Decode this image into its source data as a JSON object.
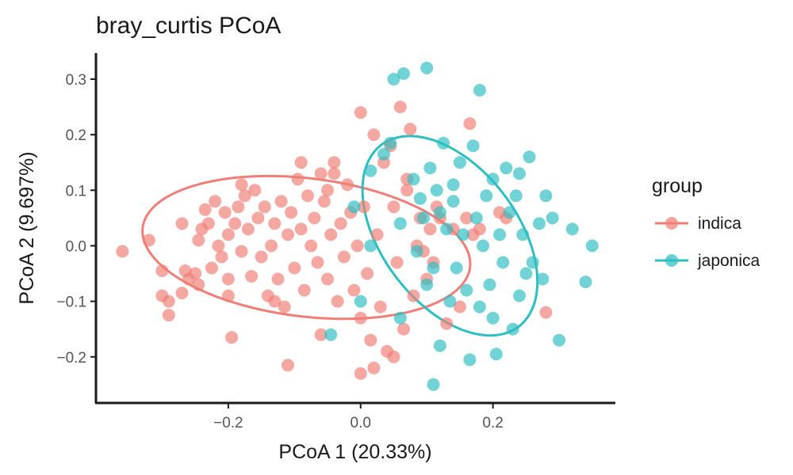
{
  "chart_data": {
    "type": "scatter",
    "title": "bray_curtis PCoA",
    "xlabel": "PCoA 1 (20.33%)",
    "ylabel": "PCoA 2 (9.697%)",
    "xlim": [
      -0.4,
      0.385
    ],
    "ylim": [
      -0.283,
      0.347
    ],
    "x_ticks": [
      -0.2,
      0.0,
      0.2
    ],
    "x_tick_labels": [
      "−0.2",
      "0.0",
      "0.2"
    ],
    "y_ticks": [
      -0.2,
      -0.1,
      0.0,
      0.1,
      0.2,
      0.3
    ],
    "y_tick_labels": [
      "−0.2",
      "−0.1",
      "0.0",
      "0.1",
      "0.2",
      "0.3"
    ],
    "grid": false,
    "legend": {
      "title": "group",
      "placement": "right",
      "entries": [
        "indica",
        "japonica"
      ]
    },
    "series": [
      {
        "name": "indica",
        "color": "#F07E76",
        "ellipse": {
          "cx": -0.082,
          "cy": -0.003,
          "rx": 0.25,
          "ry": 0.124,
          "angle_deg": -9
        },
        "points": [
          [
            -0.36,
            -0.01
          ],
          [
            -0.32,
            0.01
          ],
          [
            -0.3,
            -0.045
          ],
          [
            -0.3,
            -0.09
          ],
          [
            -0.29,
            -0.1
          ],
          [
            -0.29,
            -0.125
          ],
          [
            -0.27,
            -0.085
          ],
          [
            -0.265,
            -0.045
          ],
          [
            -0.26,
            -0.06
          ],
          [
            -0.25,
            -0.05
          ],
          [
            -0.245,
            -0.07
          ],
          [
            -0.245,
            0.01
          ],
          [
            -0.24,
            0.03
          ],
          [
            -0.235,
            0.065
          ],
          [
            -0.23,
            0.04
          ],
          [
            -0.225,
            -0.04
          ],
          [
            -0.22,
            0.08
          ],
          [
            -0.215,
            0.0
          ],
          [
            -0.21,
            -0.02
          ],
          [
            -0.205,
            0.06
          ],
          [
            -0.2,
            0.02
          ],
          [
            -0.2,
            -0.06
          ],
          [
            -0.195,
            -0.165
          ],
          [
            -0.19,
            0.04
          ],
          [
            -0.185,
            0.07
          ],
          [
            -0.18,
            -0.01
          ],
          [
            -0.175,
            0.09
          ],
          [
            -0.17,
            0.03
          ],
          [
            -0.165,
            -0.055
          ],
          [
            -0.16,
            0.1
          ],
          [
            -0.155,
            0.05
          ],
          [
            -0.15,
            -0.02
          ],
          [
            -0.145,
            0.07
          ],
          [
            -0.14,
            -0.09
          ],
          [
            -0.135,
            0.0
          ],
          [
            -0.13,
            0.04
          ],
          [
            -0.125,
            -0.06
          ],
          [
            -0.12,
            0.08
          ],
          [
            -0.115,
            -0.11
          ],
          [
            -0.11,
            0.02
          ],
          [
            -0.105,
            0.06
          ],
          [
            -0.1,
            -0.04
          ],
          [
            -0.095,
            0.12
          ],
          [
            -0.09,
            0.03
          ],
          [
            -0.085,
            -0.08
          ],
          [
            -0.08,
            0.09
          ],
          [
            -0.075,
            0.0
          ],
          [
            -0.07,
            0.05
          ],
          [
            -0.065,
            -0.03
          ],
          [
            -0.06,
            0.13
          ],
          [
            -0.055,
            0.08
          ],
          [
            -0.05,
            -0.06
          ],
          [
            -0.045,
            0.02
          ],
          [
            -0.04,
            0.15
          ],
          [
            -0.035,
            -0.1
          ],
          [
            -0.03,
            0.04
          ],
          [
            -0.025,
            -0.02
          ],
          [
            -0.02,
            0.11
          ],
          [
            -0.015,
            0.06
          ],
          [
            -0.01,
            -0.08
          ],
          [
            -0.005,
            0.0
          ],
          [
            0.0,
            0.24
          ],
          [
            0.0,
            -0.13
          ],
          [
            0.005,
            0.07
          ],
          [
            0.01,
            -0.05
          ],
          [
            0.015,
            -0.17
          ],
          [
            0.02,
            0.2
          ],
          [
            0.025,
            0.02
          ],
          [
            0.03,
            -0.11
          ],
          [
            0.035,
            0.15
          ],
          [
            0.04,
            -0.19
          ],
          [
            0.045,
            0.18
          ],
          [
            0.05,
            0.07
          ],
          [
            0.055,
            -0.03
          ],
          [
            0.06,
            0.25
          ],
          [
            0.065,
            -0.15
          ],
          [
            0.07,
            0.1
          ],
          [
            0.075,
            0.21
          ],
          [
            0.08,
            -0.09
          ],
          [
            0.085,
            0.0
          ],
          [
            0.09,
            0.05
          ],
          [
            0.095,
            -0.01
          ],
          [
            0.1,
            -0.06
          ],
          [
            0.105,
            0.03
          ],
          [
            0.11,
            -0.03
          ],
          [
            0.115,
            0.07
          ],
          [
            0.12,
            0.05
          ],
          [
            0.13,
            -0.14
          ],
          [
            0.14,
            0.03
          ],
          [
            0.15,
            -0.11
          ],
          [
            0.16,
            0.05
          ],
          [
            0.165,
            0.22
          ],
          [
            0.17,
            0.02
          ],
          [
            0.18,
            0.03
          ],
          [
            0.21,
            0.06
          ],
          [
            0.22,
            0.05
          ],
          [
            0.28,
            -0.12
          ],
          [
            0.0,
            -0.23
          ],
          [
            -0.11,
            -0.215
          ],
          [
            0.02,
            -0.22
          ],
          [
            -0.06,
            -0.16
          ],
          [
            0.05,
            -0.2
          ],
          [
            -0.04,
            0.13
          ],
          [
            -0.09,
            0.15
          ],
          [
            0.07,
            0.12
          ],
          [
            -0.18,
            0.11
          ],
          [
            -0.27,
            0.04
          ],
          [
            -0.2,
            -0.09
          ],
          [
            -0.13,
            -0.1
          ],
          [
            -0.05,
            0.1
          ]
        ]
      },
      {
        "name": "japonica",
        "color": "#2DBEC3",
        "ellipse": {
          "cx": 0.135,
          "cy": 0.018,
          "rx": 0.195,
          "ry": 0.108,
          "angle_deg": -62
        },
        "points": [
          [
            -0.01,
            0.07
          ],
          [
            0.015,
            0.0
          ],
          [
            0.015,
            0.135
          ],
          [
            0.035,
            0.165
          ],
          [
            0.045,
            0.185
          ],
          [
            0.05,
            0.3
          ],
          [
            0.065,
            0.31
          ],
          [
            0.08,
            0.12
          ],
          [
            0.085,
            -0.01
          ],
          [
            0.09,
            0.085
          ],
          [
            0.095,
            0.05
          ],
          [
            0.1,
            -0.07
          ],
          [
            0.1,
            0.32
          ],
          [
            0.105,
            0.14
          ],
          [
            0.11,
            -0.04
          ],
          [
            0.115,
            0.1
          ],
          [
            0.12,
            0.06
          ],
          [
            0.12,
            -0.18
          ],
          [
            0.125,
            0.185
          ],
          [
            0.13,
            0.03
          ],
          [
            0.135,
            -0.1
          ],
          [
            0.14,
            0.08
          ],
          [
            0.145,
            -0.04
          ],
          [
            0.15,
            0.15
          ],
          [
            0.155,
            0.02
          ],
          [
            0.16,
            -0.08
          ],
          [
            0.165,
            -0.205
          ],
          [
            0.17,
            0.18
          ],
          [
            0.175,
            0.05
          ],
          [
            0.18,
            -0.11
          ],
          [
            0.185,
            0.0
          ],
          [
            0.19,
            0.09
          ],
          [
            0.195,
            -0.07
          ],
          [
            0.2,
            0.12
          ],
          [
            0.205,
            -0.195
          ],
          [
            0.21,
            0.02
          ],
          [
            0.215,
            -0.03
          ],
          [
            0.22,
            0.14
          ],
          [
            0.225,
            0.06
          ],
          [
            0.23,
            -0.15
          ],
          [
            0.235,
            0.09
          ],
          [
            0.24,
            -0.09
          ],
          [
            0.245,
            0.02
          ],
          [
            0.25,
            -0.05
          ],
          [
            0.255,
            0.16
          ],
          [
            0.26,
            -0.03
          ],
          [
            0.27,
            0.04
          ],
          [
            0.275,
            -0.06
          ],
          [
            0.28,
            0.09
          ],
          [
            0.29,
            0.05
          ],
          [
            0.3,
            -0.17
          ],
          [
            0.32,
            0.03
          ],
          [
            0.34,
            -0.065
          ],
          [
            0.35,
            0.0
          ],
          [
            0.18,
            0.28
          ],
          [
            0.11,
            -0.25
          ],
          [
            0.0,
            -0.1
          ],
          [
            0.06,
            -0.13
          ],
          [
            0.2,
            -0.13
          ],
          [
            -0.045,
            -0.16
          ],
          [
            0.06,
            0.04
          ],
          [
            0.14,
            0.11
          ],
          [
            0.24,
            0.13
          ]
        ]
      }
    ]
  }
}
